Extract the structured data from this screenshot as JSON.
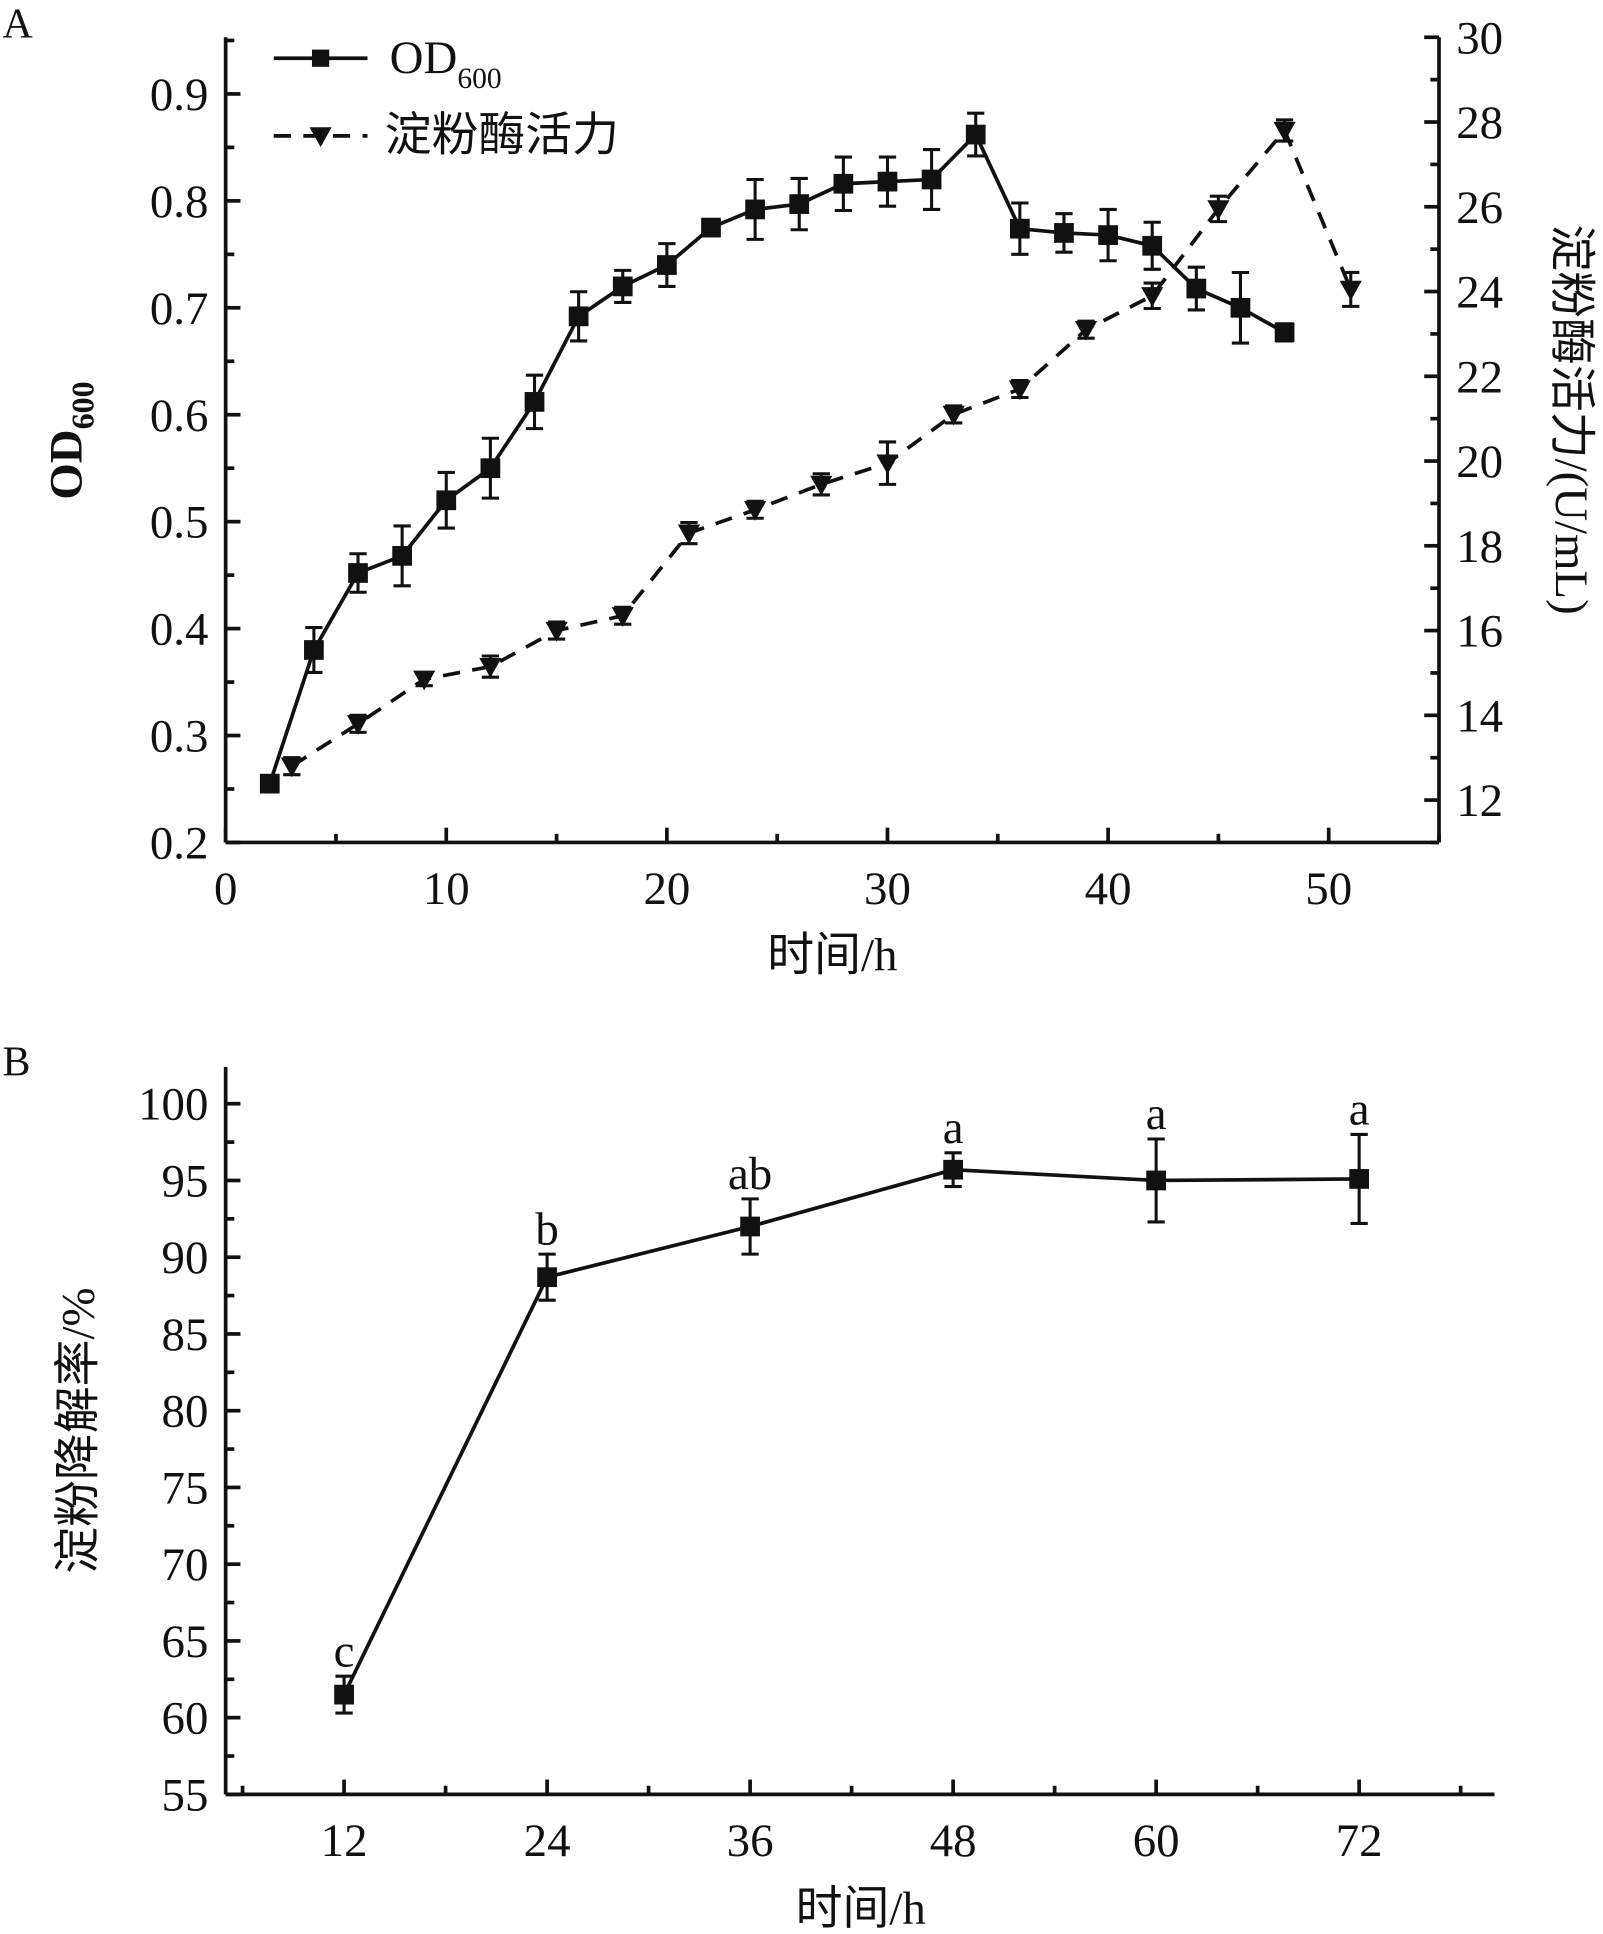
{
  "chart_data": [
    {
      "panel_label": "A",
      "type": "line",
      "xlabel": "时间/h",
      "ylabel": "OD600",
      "ylabel_main": "OD",
      "ylabel_sub": "600",
      "y2label": "淀粉酶活力/(U/mL)",
      "xlim": [
        0,
        55
      ],
      "ylim": [
        0.2,
        0.953
      ],
      "y2lim": [
        11,
        30
      ],
      "xticks": [
        0,
        10,
        20,
        30,
        40,
        50
      ],
      "yticks": [
        "0.2",
        "0.3",
        "0.4",
        "0.5",
        "0.6",
        "0.7",
        "0.8",
        "0.9"
      ],
      "y2ticks": [
        "12",
        "14",
        "16",
        "18",
        "20",
        "22",
        "24",
        "26",
        "28",
        "30"
      ],
      "grid": false,
      "legend_position": "top-left",
      "series": [
        {
          "name": "OD600",
          "name_main": "OD",
          "name_sub": "600",
          "axis": "left",
          "style": "solid",
          "marker": "square",
          "color": "#111111",
          "x": [
            2,
            4,
            6,
            8,
            10,
            12,
            14,
            16,
            18,
            20,
            22,
            24,
            26,
            28,
            30,
            32,
            34,
            36,
            38,
            40,
            42,
            44,
            46,
            48
          ],
          "y": [
            0.255,
            0.38,
            0.452,
            0.468,
            0.52,
            0.55,
            0.612,
            0.692,
            0.72,
            0.74,
            0.775,
            0.792,
            0.797,
            0.816,
            0.818,
            0.82,
            0.862,
            0.774,
            0.77,
            0.768,
            0.758,
            0.718,
            0.7,
            0.677
          ],
          "err": [
            0.004,
            0.021,
            0.018,
            0.028,
            0.026,
            0.028,
            0.025,
            0.023,
            0.015,
            0.02,
            0.004,
            0.028,
            0.024,
            0.025,
            0.023,
            0.028,
            0.02,
            0.024,
            0.018,
            0.024,
            0.022,
            0.02,
            0.033,
            0.008
          ]
        },
        {
          "name": "淀粉酶活力",
          "axis": "right",
          "style": "dashed",
          "marker": "triangle-down",
          "color": "#111111",
          "x": [
            3,
            6,
            9,
            12,
            15,
            18,
            21,
            24,
            27,
            30,
            33,
            36,
            39,
            42,
            45,
            48,
            51
          ],
          "y": [
            12.8,
            13.8,
            14.85,
            15.15,
            16.0,
            16.35,
            18.3,
            18.85,
            19.45,
            19.95,
            21.1,
            21.7,
            23.1,
            23.9,
            25.95,
            27.8,
            24.05
          ],
          "err": [
            0.2,
            0.2,
            0.15,
            0.25,
            0.2,
            0.2,
            0.25,
            0.2,
            0.25,
            0.5,
            0.2,
            0.2,
            0.2,
            0.3,
            0.3,
            0.25,
            0.4
          ]
        }
      ]
    },
    {
      "panel_label": "B",
      "type": "line",
      "xlabel": "时间/h",
      "ylabel": "淀粉降解率/%",
      "xlim": [
        5,
        80
      ],
      "ylim": [
        55,
        102.4
      ],
      "xticks": [
        12,
        24,
        36,
        48,
        60,
        72
      ],
      "yticks": [
        "55",
        "60",
        "65",
        "70",
        "75",
        "80",
        "85",
        "90",
        "95",
        "100"
      ],
      "grid": false,
      "series": [
        {
          "style": "solid",
          "marker": "square",
          "color": "#111111",
          "x": [
            12,
            24,
            36,
            48,
            60,
            72
          ],
          "y": [
            61.5,
            88.7,
            92.0,
            95.7,
            95.0,
            95.1
          ],
          "err": [
            1.2,
            1.5,
            1.8,
            1.1,
            2.7,
            2.9
          ],
          "labels": [
            "c",
            "b",
            "ab",
            "a",
            "a",
            "a"
          ]
        }
      ]
    }
  ]
}
